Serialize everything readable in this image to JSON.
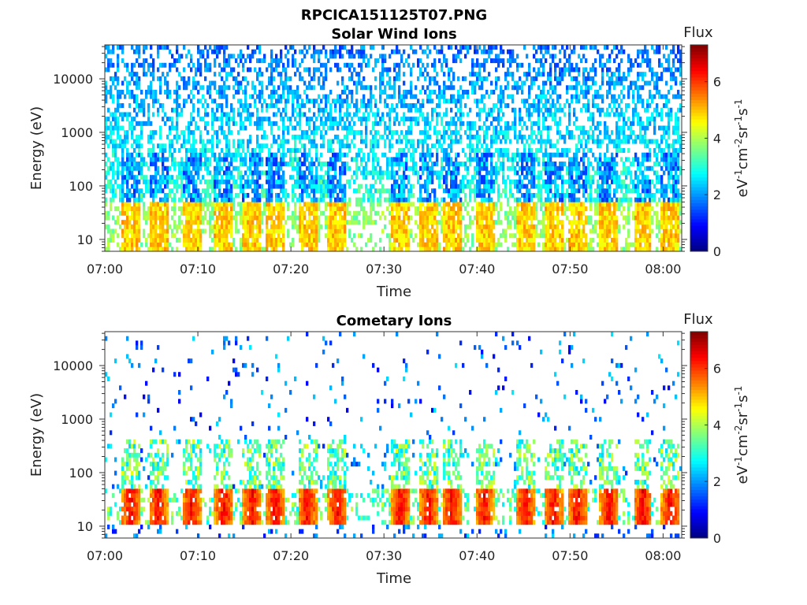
{
  "figure_title": "RPCICA151125T07.PNG",
  "chart_data": [
    {
      "type": "heatmap",
      "title": "Solar Wind Ions",
      "xlabel": "Time",
      "ylabel": "Energy (eV)",
      "x_ticks": [
        "07:00",
        "07:10",
        "07:20",
        "07:30",
        "07:40",
        "07:50",
        "08:00"
      ],
      "x_range_minutes": [
        0,
        62
      ],
      "y_ticks": [
        "10",
        "100",
        "1000",
        "10000"
      ],
      "y_tick_values": [
        10,
        100,
        1000,
        10000
      ],
      "y_range": [
        6,
        43000
      ],
      "y_scale": "log",
      "colorbar": {
        "label": "Flux",
        "unit": "eV-1cm-2sr-1s-1",
        "range": [
          0,
          7.3
        ],
        "ticks": [
          "0",
          "2",
          "4",
          "6"
        ],
        "tick_values": [
          0,
          2,
          4,
          6
        ],
        "colormap": "jet"
      },
      "bursts_minutes": [
        2.8,
        5.8,
        9.3,
        12.8,
        15.8,
        18.3,
        21.8,
        25.0,
        31.8,
        34.8,
        37.3,
        40.8,
        45.2,
        48.2,
        50.8,
        54.2,
        57.8,
        60.8
      ],
      "low_energy_peak_flux": 5.0,
      "background_flux_at_10keV": 2.0
    },
    {
      "type": "heatmap",
      "title": "Cometary Ions",
      "xlabel": "Time",
      "ylabel": "Energy (eV)",
      "x_ticks": [
        "07:00",
        "07:10",
        "07:20",
        "07:30",
        "07:40",
        "07:50",
        "08:00"
      ],
      "x_range_minutes": [
        0,
        62
      ],
      "y_ticks": [
        "10",
        "100",
        "1000",
        "10000"
      ],
      "y_tick_values": [
        10,
        100,
        1000,
        10000
      ],
      "y_range": [
        6,
        43000
      ],
      "y_scale": "log",
      "colorbar": {
        "label": "Flux",
        "unit": "eV-1cm-2sr-1s-1",
        "range": [
          0,
          7.3
        ],
        "ticks": [
          "0",
          "2",
          "4",
          "6"
        ],
        "tick_values": [
          0,
          2,
          4,
          6
        ],
        "colormap": "jet"
      },
      "bursts_minutes": [
        2.8,
        5.8,
        9.3,
        12.8,
        15.8,
        18.3,
        21.8,
        25.0,
        31.8,
        34.8,
        37.3,
        40.8,
        45.2,
        48.2,
        50.8,
        54.2,
        57.8,
        60.8
      ],
      "low_energy_peak_flux": 6.8,
      "background_flux_at_10keV": 0.8
    }
  ]
}
